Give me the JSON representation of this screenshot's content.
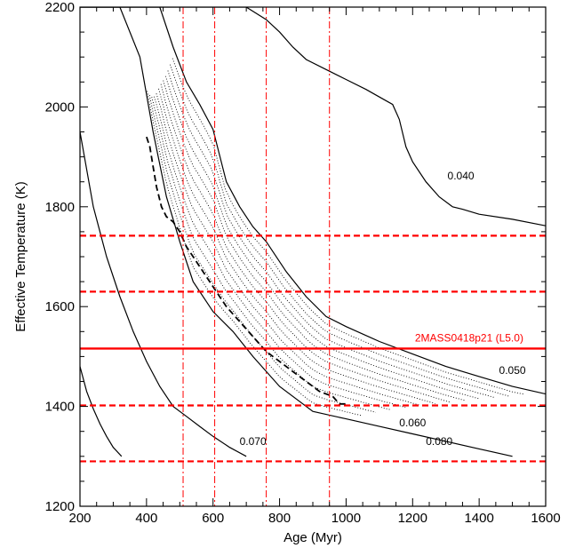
{
  "chart_data": {
    "type": "line",
    "xlabel": "Age (Myr)",
    "ylabel": "Effective Temperature (K)",
    "xlim": [
      200,
      1600
    ],
    "ylim": [
      1200,
      2200
    ],
    "xticks": [
      200,
      400,
      600,
      800,
      1000,
      1200,
      1400,
      1600
    ],
    "yticks": [
      1200,
      1400,
      1600,
      1800,
      2000,
      2200
    ],
    "grid": false,
    "colors": {
      "axes": "#000000",
      "target": "#ff0000"
    },
    "target": {
      "label": "2MASS0418p21 (L5.0)",
      "teff": 1516,
      "teff_bounds": [
        1290,
        1402,
        1630,
        1742
      ],
      "age_bounds": [
        510,
        605,
        760,
        950
      ]
    },
    "mass_tracks": [
      {
        "label": "0.080",
        "x": [
          200,
          220,
          240,
          260,
          280,
          300,
          325
        ],
        "y": [
          1480,
          1430,
          1395,
          1365,
          1340,
          1318,
          1300
        ],
        "label_at": [
          1280,
          1323
        ]
      },
      {
        "label": "0.070",
        "x": [
          200,
          240,
          280,
          320,
          360,
          400,
          440,
          480,
          520,
          560,
          600,
          650,
          700
        ],
        "y": [
          1950,
          1800,
          1700,
          1620,
          1550,
          1490,
          1440,
          1400,
          1380,
          1360,
          1340,
          1318,
          1300
        ],
        "label_at": [
          720,
          1323
        ]
      },
      {
        "label": "0.060",
        "x": [
          200,
          260,
          320,
          380,
          420,
          460,
          500,
          540,
          600,
          660,
          720,
          800,
          900,
          1000,
          1100,
          1200,
          1300,
          1400,
          1500
        ],
        "y": [
          2200,
          2200,
          2200,
          2100,
          1950,
          1820,
          1730,
          1650,
          1590,
          1550,
          1500,
          1440,
          1390,
          1375,
          1360,
          1345,
          1330,
          1315,
          1300
        ],
        "label_at": [
          1200,
          1360
        ]
      },
      {
        "label": "0.050",
        "x": [
          200,
          320,
          440,
          480,
          520,
          560,
          600,
          640,
          680,
          720,
          760,
          820,
          880,
          940,
          1000,
          1100,
          1200,
          1300,
          1400,
          1500,
          1600
        ],
        "y": [
          2200,
          2200,
          2200,
          2120,
          2050,
          2005,
          1955,
          1850,
          1800,
          1760,
          1730,
          1670,
          1620,
          1580,
          1560,
          1530,
          1505,
          1480,
          1460,
          1440,
          1425
        ],
        "label_at": [
          1500,
          1465
        ]
      },
      {
        "label": "0.040",
        "x": [
          200,
          700,
          760,
          800,
          840,
          880,
          940,
          1000,
          1060,
          1100,
          1140,
          1160,
          1180,
          1200,
          1240,
          1280,
          1320,
          1350,
          1400,
          1500,
          1600
        ],
        "y": [
          2200,
          2200,
          2175,
          2150,
          2120,
          2095,
          2075,
          2055,
          2035,
          2020,
          2005,
          1975,
          1920,
          1890,
          1850,
          1820,
          1800,
          1795,
          1785,
          1775,
          1762
        ],
        "label_at": [
          1345,
          1855
        ]
      }
    ],
    "best_fit_track": {
      "x": [
        400,
        410,
        420,
        430,
        445,
        460,
        480,
        500,
        520,
        540,
        560,
        580,
        600,
        620,
        640,
        680,
        720,
        760,
        800,
        840,
        880,
        920,
        960,
        980,
        1000
      ],
      "y": [
        1940,
        1920,
        1880,
        1840,
        1800,
        1780,
        1770,
        1750,
        1720,
        1700,
        1680,
        1660,
        1640,
        1620,
        1600,
        1570,
        1540,
        1510,
        1490,
        1470,
        1450,
        1430,
        1420,
        1405,
        1405
      ]
    }
  }
}
